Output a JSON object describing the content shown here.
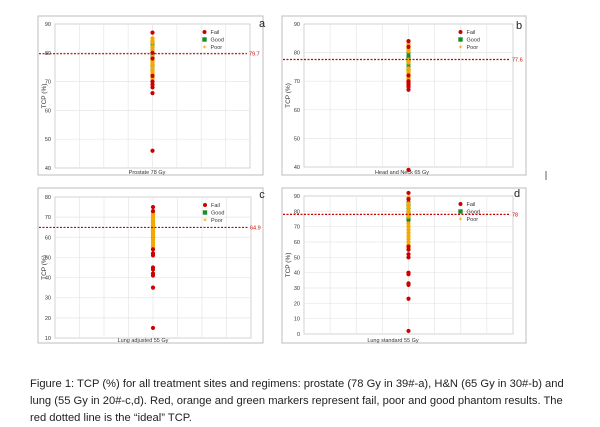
{
  "caption": "Figure 1: TCP (%) for all treatment sites and regimens: prostate (78 Gy in 39#-a), H&N (65 Gy in 30#-b) and lung (55 Gy in 20#-c,d). Red, orange and green markers represent fail, poor and good phantom results. The red dotted line is the “ideal” TCP.",
  "colors": {
    "fail": "#cc0000",
    "good": "#1e8a2e",
    "poor": "#f5a800",
    "ideal_line": "#cc0000",
    "grid": "#e6e6e6"
  },
  "chart_data": [
    {
      "id": "a",
      "type": "scatter",
      "panel_letter": "a",
      "xlabel": "Prostate 78 Gy",
      "ylabel": "TCP (%)",
      "ylim": [
        40,
        90
      ],
      "yticks": [
        40,
        50,
        60,
        70,
        80,
        90
      ],
      "grid": true,
      "legend": {
        "position": "top-right",
        "entries": [
          "Fail",
          "Good",
          "Poor"
        ]
      },
      "ideal_line": {
        "value": 79.7,
        "label": "79.7"
      },
      "series": [
        {
          "name": "Fail",
          "color": "#cc0000",
          "values": [
            87,
            80,
            78,
            72,
            70,
            69,
            68,
            66,
            46
          ]
        },
        {
          "name": "Good",
          "color": "#1e8a2e",
          "values": [
            84,
            83,
            82,
            81,
            80,
            79.5,
            79,
            78.5,
            78,
            77,
            76,
            75.5,
            75,
            74
          ]
        },
        {
          "name": "Poor",
          "color": "#f5a800",
          "values": [
            85,
            84,
            83.5,
            82,
            81,
            79,
            78,
            77.5,
            77,
            76.5,
            76,
            75,
            74,
            73.5,
            73,
            72.5,
            72,
            71.5,
            71
          ]
        }
      ]
    },
    {
      "id": "b",
      "type": "scatter",
      "panel_letter": "b",
      "xlabel": "Head and Neck 65 Gy",
      "ylabel": "TCP (%)",
      "ylim": [
        40,
        90
      ],
      "yticks": [
        40,
        50,
        60,
        70,
        80,
        90
      ],
      "grid": true,
      "legend": {
        "position": "top-right",
        "entries": [
          "Fail",
          "Good",
          "Poor"
        ]
      },
      "ideal_line": {
        "value": 77.6,
        "label": "77.6"
      },
      "series": [
        {
          "name": "Fail",
          "color": "#cc0000",
          "values": [
            84,
            82,
            72,
            70,
            69.5,
            69,
            68.5,
            68,
            67,
            39
          ]
        },
        {
          "name": "Good",
          "color": "#1e8a2e",
          "values": [
            80,
            79,
            78.5,
            78,
            77,
            76,
            75,
            74
          ]
        },
        {
          "name": "Poor",
          "color": "#f5a800",
          "values": [
            83,
            82.5,
            81.5,
            81,
            80.5,
            77.5,
            76.5,
            74.5,
            73.5,
            73,
            72.5,
            72,
            71.5,
            71,
            70.5
          ]
        }
      ]
    },
    {
      "id": "c",
      "type": "scatter",
      "panel_letter": "c",
      "xlabel": "Lung adjusted 55 Gy",
      "ylabel": "TCP (%)",
      "ylim": [
        10,
        80
      ],
      "yticks": [
        10,
        20,
        30,
        40,
        50,
        60,
        70,
        80
      ],
      "grid": true,
      "legend": {
        "position": "top-right",
        "entries": [
          "Fail",
          "Good",
          "Poor"
        ]
      },
      "ideal_line": {
        "value": 64.9,
        "label": "64.9"
      },
      "series": [
        {
          "name": "Fail",
          "color": "#cc0000",
          "values": [
            75,
            73,
            54,
            52,
            51,
            45,
            44,
            42,
            41,
            35,
            15
          ]
        },
        {
          "name": "Good",
          "color": "#1e8a2e",
          "values": [
            68,
            67,
            66,
            65,
            64,
            63,
            62,
            61,
            60
          ]
        },
        {
          "name": "Poor",
          "color": "#f5a800",
          "values": [
            72,
            71,
            70,
            69,
            68.5,
            67.5,
            66.5,
            65.5,
            64.5,
            63.5,
            62.5,
            61.5,
            60.5,
            59,
            58,
            57,
            56,
            55
          ]
        }
      ]
    },
    {
      "id": "d",
      "type": "scatter",
      "panel_letter": "d",
      "xlabel": "Lung standard 55 Gy",
      "ylabel": "TCP (%)",
      "ylim": [
        0,
        90
      ],
      "yticks": [
        0,
        10,
        20,
        30,
        40,
        50,
        60,
        70,
        80,
        90
      ],
      "grid": true,
      "legend": {
        "position": "top-right",
        "entries": [
          "Fail",
          "Good",
          "Poor"
        ]
      },
      "ideal_line": {
        "value": 78,
        "label": "78"
      },
      "series": [
        {
          "name": "Fail",
          "color": "#cc0000",
          "values": [
            92,
            88,
            57,
            55,
            52,
            50,
            40,
            39,
            33,
            32,
            23,
            2
          ]
        },
        {
          "name": "Good",
          "color": "#1e8a2e",
          "values": [
            86,
            84,
            82,
            80,
            79,
            78,
            77,
            76,
            75,
            74
          ]
        },
        {
          "name": "Poor",
          "color": "#f5a800",
          "values": [
            89,
            85,
            83,
            81,
            79.5,
            77.5,
            76.5,
            72,
            70,
            68,
            66,
            64,
            62,
            60,
            58,
            56
          ]
        }
      ]
    }
  ]
}
